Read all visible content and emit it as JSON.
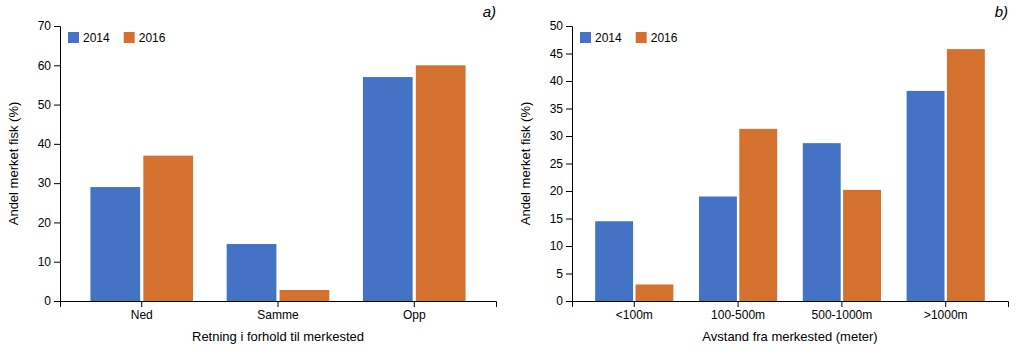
{
  "chart_data": [
    {
      "type": "bar",
      "categories": [
        "Ned",
        "Samme",
        "Opp"
      ],
      "series": [
        {
          "name": "2014",
          "color": "#4472C4",
          "values": [
            29,
            14.5,
            57
          ]
        },
        {
          "name": "2016",
          "color": "#D4712E",
          "values": [
            37,
            2.8,
            60
          ]
        }
      ],
      "xlabel": "Retning i forhold til merkested",
      "ylabel": "Andel merket fisk (%)",
      "ylim": [
        0,
        70
      ],
      "yticks": [
        0,
        10,
        20,
        30,
        40,
        50,
        60,
        70
      ],
      "annotations": [
        "a)"
      ],
      "legend": "upper left",
      "grid": false
    },
    {
      "type": "bar",
      "categories": [
        "<100m",
        "100-500m",
        "500-1000m",
        ">1000m"
      ],
      "series": [
        {
          "name": "2014",
          "color": "#4472C4",
          "values": [
            14.5,
            19,
            28.7,
            38.2
          ]
        },
        {
          "name": "2016",
          "color": "#D4712E",
          "values": [
            3.0,
            31.3,
            20.2,
            45.8
          ]
        }
      ],
      "xlabel": "Avstand fra merkested (meter)",
      "ylabel": "Andel merket fisk (%)",
      "ylim": [
        0,
        50
      ],
      "yticks": [
        0,
        5,
        10,
        15,
        20,
        25,
        30,
        35,
        40,
        45,
        50
      ],
      "annotations": [
        "b)"
      ],
      "legend": "upper left",
      "grid": false
    }
  ]
}
